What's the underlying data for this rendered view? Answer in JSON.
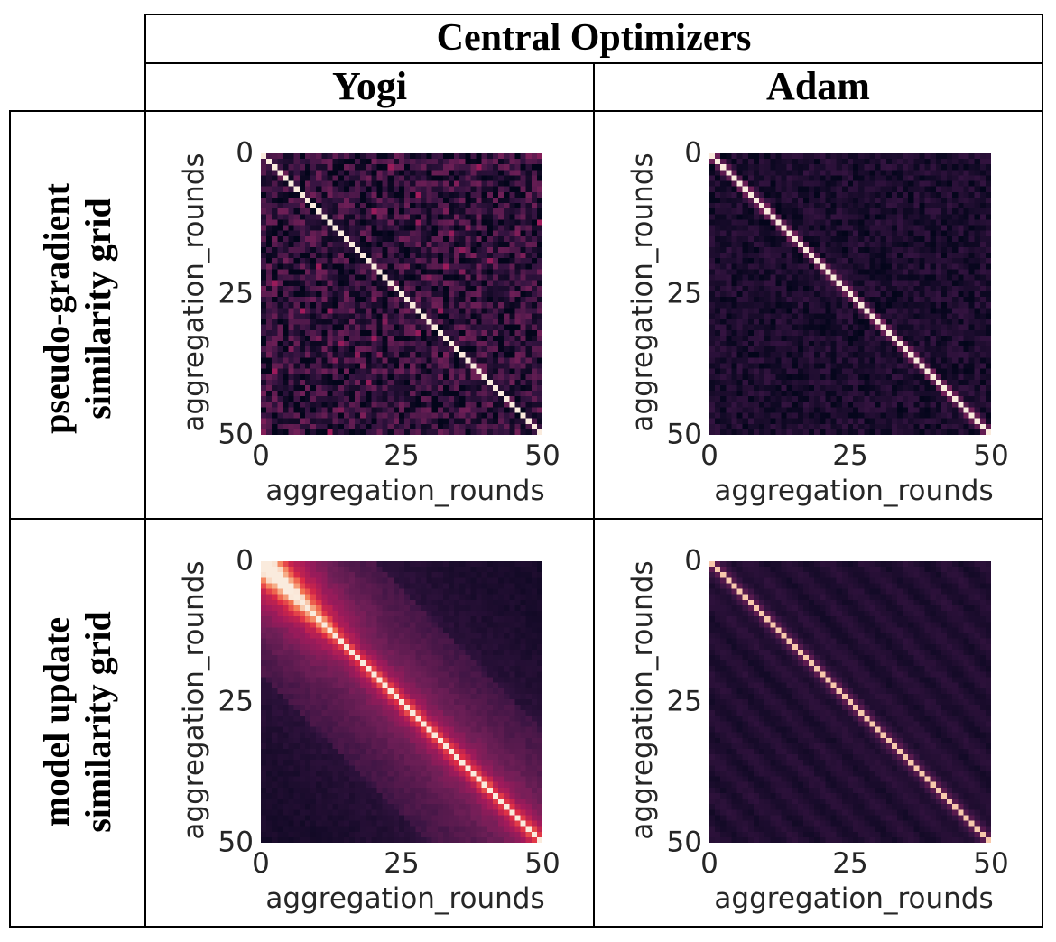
{
  "header": {
    "title": "Central Optimizers",
    "columns": [
      "Yogi",
      "Adam"
    ]
  },
  "rows": [
    {
      "label_line1": "pseudo-gradient",
      "label_line2": "similarity grid"
    },
    {
      "label_line1": "model update",
      "label_line2": "similarity grid"
    }
  ],
  "chart_data": [
    {
      "type": "heatmap",
      "row": "pseudo-gradient similarity grid",
      "column": "Yogi",
      "size": 51,
      "pattern": "noisy",
      "diag_value": 1.0,
      "offdiag_mean": 0.18,
      "noise": 0.22,
      "xlabel": "aggregation_rounds",
      "ylabel": "aggregation_rounds",
      "xticks": [
        "0",
        "25",
        "50"
      ],
      "yticks": [
        "0",
        "25",
        "50"
      ],
      "xlim": [
        0,
        50
      ],
      "ylim": [
        0,
        50
      ]
    },
    {
      "type": "heatmap",
      "row": "pseudo-gradient similarity grid",
      "column": "Adam",
      "size": 51,
      "pattern": "noisy-band",
      "diag_value": 1.0,
      "band_value": 0.35,
      "offdiag_mean": 0.1,
      "noise": 0.1,
      "xlabel": "aggregation_rounds",
      "ylabel": "aggregation_rounds",
      "xticks": [
        "0",
        "25",
        "50"
      ],
      "yticks": [
        "0",
        "25",
        "50"
      ],
      "xlim": [
        0,
        50
      ],
      "ylim": [
        0,
        50
      ]
    },
    {
      "type": "heatmap",
      "row": "model update similarity grid",
      "column": "Yogi",
      "size": 51,
      "pattern": "smooth-wide",
      "diag_value": 1.0,
      "near_diag": 0.55,
      "far_value": 0.15,
      "xlabel": "aggregation_rounds",
      "ylabel": "aggregation_rounds",
      "xticks": [
        "0",
        "25",
        "50"
      ],
      "yticks": [
        "0",
        "25",
        "50"
      ],
      "xlim": [
        0,
        50
      ],
      "ylim": [
        0,
        50
      ]
    },
    {
      "type": "heatmap",
      "row": "model update similarity grid",
      "column": "Adam",
      "size": 51,
      "pattern": "smooth-narrow",
      "diag_value": 0.95,
      "near_diag": 0.45,
      "far_value": 0.12,
      "xlabel": "aggregation_rounds",
      "ylabel": "aggregation_rounds",
      "xticks": [
        "0",
        "25",
        "50"
      ],
      "yticks": [
        "0",
        "25",
        "50"
      ],
      "xlim": [
        0,
        50
      ],
      "ylim": [
        0,
        50
      ]
    }
  ],
  "colormap": "rocket",
  "colors": {
    "low": "#03051a",
    "mid": "#a11a5b",
    "high": "#faebdd"
  }
}
